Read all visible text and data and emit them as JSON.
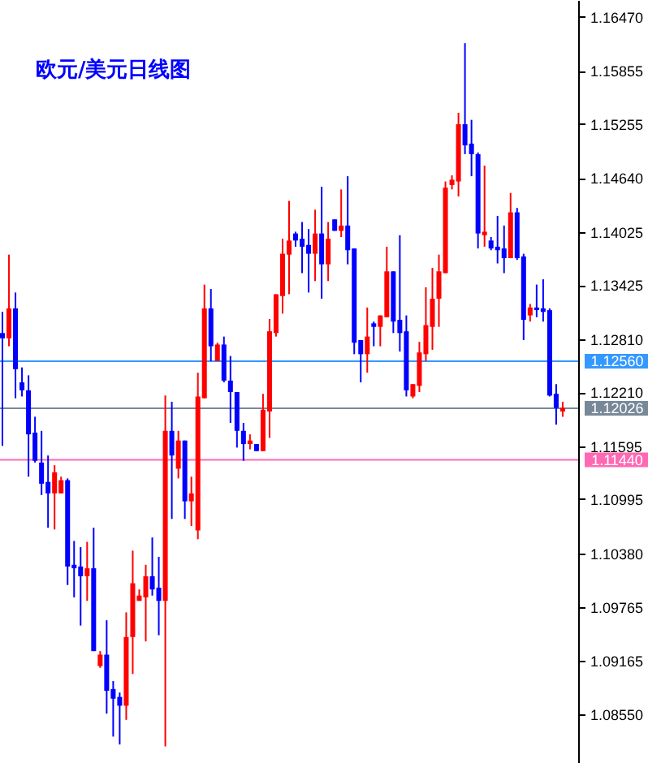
{
  "chart_data": {
    "type": "candlestick",
    "title": "欧元/美元日线图",
    "categories": [
      null,
      null,
      null,
      null,
      null,
      null,
      null,
      null,
      null,
      null,
      null,
      null,
      null,
      null,
      null,
      null,
      null,
      null,
      null,
      null,
      null,
      null,
      null,
      null,
      null,
      null,
      null,
      null,
      null,
      null,
      null,
      null,
      null,
      null,
      null,
      null,
      null,
      null,
      null,
      null,
      null,
      null,
      null,
      null,
      null,
      null,
      null,
      null,
      null,
      null,
      null,
      null,
      null,
      null,
      null,
      null,
      null,
      null,
      null,
      null,
      null,
      null,
      null,
      null,
      null,
      null,
      null,
      null,
      null,
      null,
      null,
      null,
      null,
      null,
      null,
      null,
      null,
      null,
      null,
      null,
      null,
      null,
      null,
      null,
      null,
      null,
      null
    ],
    "ohlc": [
      [
        1.1288,
        1.1312,
        1.116,
        1.1282
      ],
      [
        1.1282,
        1.1377,
        1.1273,
        1.1316
      ],
      [
        1.1316,
        1.1334,
        1.1214,
        1.1247
      ],
      [
        1.1232,
        1.1249,
        1.1216,
        1.1223
      ],
      [
        1.1223,
        1.124,
        1.1125,
        1.1173
      ],
      [
        1.1175,
        1.1193,
        1.1141,
        1.1143
      ],
      [
        1.1141,
        1.1177,
        1.1104,
        1.1117
      ],
      [
        1.1119,
        1.1149,
        1.1067,
        1.1106
      ],
      [
        1.1106,
        1.1138,
        1.1065,
        1.113
      ],
      [
        1.1106,
        1.1125,
        1.1106,
        1.1121
      ],
      [
        1.1121,
        1.1123,
        1.1002,
        1.1023
      ],
      [
        1.1025,
        1.1052,
        1.0988,
        1.1021
      ],
      [
        1.1023,
        1.1045,
        1.0956,
        1.1012
      ],
      [
        1.1012,
        1.1051,
        1.0984,
        1.1021
      ],
      [
        1.1021,
        1.1067,
        1.0927,
        1.0927
      ],
      [
        1.091,
        1.0927,
        1.0908,
        1.0923
      ],
      [
        1.0923,
        1.0962,
        1.0856,
        1.0882
      ],
      [
        1.0884,
        1.0893,
        1.083,
        1.0873
      ],
      [
        1.0875,
        1.088,
        1.0821,
        1.0865
      ],
      [
        1.0865,
        1.0971,
        1.0849,
        1.0943
      ],
      [
        1.0943,
        1.1041,
        1.0901,
        1.1004
      ],
      [
        1.0984,
        1.0997,
        1.0984,
        1.099
      ],
      [
        1.0988,
        1.1025,
        1.0938,
        1.1012
      ],
      [
        1.1012,
        1.1056,
        1.099,
        1.0997
      ],
      [
        1.0999,
        1.1034,
        1.0945,
        1.0984
      ],
      [
        1.0984,
        1.1217,
        1.0819,
        1.1177
      ],
      [
        1.1177,
        1.121,
        1.1077,
        1.1149
      ],
      [
        1.1134,
        1.1177,
        1.1123,
        1.1166
      ],
      [
        1.1166,
        1.1166,
        1.1077,
        1.1097
      ],
      [
        1.1097,
        1.1125,
        1.1069,
        1.1106
      ],
      [
        1.1064,
        1.1243,
        1.1054,
        1.1216
      ],
      [
        1.1214,
        1.1343,
        1.1214,
        1.1316
      ],
      [
        1.1316,
        1.1338,
        1.1256,
        1.1273
      ],
      [
        1.1256,
        1.1277,
        1.1256,
        1.1275
      ],
      [
        1.1275,
        1.1284,
        1.1232,
        1.1234
      ],
      [
        1.1234,
        1.1262,
        1.1186,
        1.1221
      ],
      [
        1.1221,
        1.1221,
        1.1158,
        1.1177
      ],
      [
        1.1177,
        1.1186,
        1.1143,
        1.1162
      ],
      [
        1.1162,
        1.1173,
        1.1156,
        1.1166
      ],
      [
        1.1162,
        1.1162,
        1.1154,
        1.1154
      ],
      [
        1.1154,
        1.1219,
        1.1154,
        1.1201
      ],
      [
        1.1199,
        1.1304,
        1.1169,
        1.129
      ],
      [
        1.1288,
        1.1332,
        1.1284,
        1.1332
      ],
      [
        1.133,
        1.1395,
        1.131,
        1.1378
      ],
      [
        1.1377,
        1.1438,
        1.1332,
        1.1393
      ],
      [
        1.1401,
        1.1403,
        1.1386,
        1.1393
      ],
      [
        1.1395,
        1.1414,
        1.1356,
        1.1386
      ],
      [
        1.1388,
        1.1406,
        1.1334,
        1.1378
      ],
      [
        1.1378,
        1.1428,
        1.1347,
        1.1401
      ],
      [
        1.1401,
        1.1454,
        1.1327,
        1.1366
      ],
      [
        1.1366,
        1.1414,
        1.1347,
        1.1395
      ],
      [
        1.1417,
        1.1417,
        1.1404,
        1.1404
      ],
      [
        1.1404,
        1.1451,
        1.1397,
        1.141
      ],
      [
        1.141,
        1.1466,
        1.1366,
        1.1382
      ],
      [
        1.1384,
        1.1384,
        1.1264,
        1.1277
      ],
      [
        1.128,
        1.128,
        1.1232,
        1.1264
      ],
      [
        1.1264,
        1.1317,
        1.1243,
        1.1284
      ],
      [
        1.1299,
        1.1301,
        1.1273,
        1.1295
      ],
      [
        1.1295,
        1.1308,
        1.1273,
        1.1308
      ],
      [
        1.1306,
        1.1386,
        1.1306,
        1.1358
      ],
      [
        1.1358,
        1.1358,
        1.1288,
        1.1301
      ],
      [
        1.1303,
        1.1399,
        1.1267,
        1.1288
      ],
      [
        1.129,
        1.1308,
        1.1216,
        1.1223
      ],
      [
        1.1216,
        1.123,
        1.1214,
        1.123
      ],
      [
        1.1228,
        1.1278,
        1.1221,
        1.1266
      ],
      [
        1.1264,
        1.134,
        1.1256,
        1.1297
      ],
      [
        1.1295,
        1.1362,
        1.1269,
        1.1327
      ],
      [
        1.1327,
        1.1377,
        1.1295,
        1.1358
      ],
      [
        1.1356,
        1.146,
        1.1356,
        1.1453
      ],
      [
        1.1456,
        1.1467,
        1.1451,
        1.1462
      ],
      [
        1.146,
        1.1538,
        1.1443,
        1.1525
      ],
      [
        1.1525,
        1.1617,
        1.1491,
        1.1501
      ],
      [
        1.1503,
        1.153,
        1.1466,
        1.1491
      ],
      [
        1.1491,
        1.1493,
        1.1384,
        1.1401
      ],
      [
        1.1399,
        1.1478,
        1.1386,
        1.1403
      ],
      [
        1.1393,
        1.1397,
        1.1382,
        1.1384
      ],
      [
        1.1386,
        1.1421,
        1.1367,
        1.1382
      ],
      [
        1.1384,
        1.141,
        1.1356,
        1.1373
      ],
      [
        1.1373,
        1.1447,
        1.1373,
        1.1425
      ],
      [
        1.1425,
        1.143,
        1.1371,
        1.1373
      ],
      [
        1.1375,
        1.1378,
        1.128,
        1.1303
      ],
      [
        1.1308,
        1.1321,
        1.1301,
        1.1317
      ],
      [
        1.1317,
        1.1343,
        1.1306,
        1.1314
      ],
      [
        1.1316,
        1.1349,
        1.1301,
        1.1312
      ],
      [
        1.1314,
        1.1316,
        1.1216,
        1.1217
      ],
      [
        1.1219,
        1.123,
        1.1184,
        1.1203
      ],
      [
        1.1199,
        1.121,
        1.1193,
        1.1203
      ]
    ],
    "colors": [
      "#0000ff",
      "#ff0000",
      "#0000ff",
      "#0000ff",
      "#0000ff",
      "#0000ff",
      "#0000ff",
      "#0000ff",
      "#ff0000",
      "#ff0000",
      "#0000ff",
      "#0000ff",
      "#0000ff",
      "#ff0000",
      "#0000ff",
      "#ff0000",
      "#0000ff",
      "#0000ff",
      "#0000ff",
      "#ff0000",
      "#ff0000",
      "#ff0000",
      "#ff0000",
      "#0000ff",
      "#0000ff",
      "#ff0000",
      "#0000ff",
      "#ff0000",
      "#0000ff",
      "#ff0000",
      "#ff0000",
      "#ff0000",
      "#0000ff",
      "#ff0000",
      "#0000ff",
      "#0000ff",
      "#0000ff",
      "#0000ff",
      "#ff0000",
      "#0000ff",
      "#ff0000",
      "#ff0000",
      "#ff0000",
      "#ff0000",
      "#ff0000",
      "#0000ff",
      "#0000ff",
      "#0000ff",
      "#ff0000",
      "#0000ff",
      "#ff0000",
      "#0000ff",
      "#ff0000",
      "#0000ff",
      "#0000ff",
      "#0000ff",
      "#ff0000",
      "#0000ff",
      "#ff0000",
      "#ff0000",
      "#0000ff",
      "#0000ff",
      "#0000ff",
      "#ff0000",
      "#ff0000",
      "#ff0000",
      "#ff0000",
      "#ff0000",
      "#ff0000",
      "#ff0000",
      "#ff0000",
      "#0000ff",
      "#0000ff",
      "#0000ff",
      "#ff0000",
      "#0000ff",
      "#0000ff",
      "#0000ff",
      "#ff0000",
      "#0000ff",
      "#0000ff",
      "#ff0000",
      "#0000ff",
      "#0000ff",
      "#0000ff",
      "#0000ff",
      "#ff0000"
    ],
    "ylim": [
      1.08,
      1.1666
    ],
    "yticks": [
      {
        "value": 1.1647,
        "label": "1.16470"
      },
      {
        "value": 1.15855,
        "label": "1.15855"
      },
      {
        "value": 1.15255,
        "label": "1.15255"
      },
      {
        "value": 1.1464,
        "label": "1.14640"
      },
      {
        "value": 1.14025,
        "label": "1.14025"
      },
      {
        "value": 1.13425,
        "label": "1.13425"
      },
      {
        "value": 1.1281,
        "label": "1.12810"
      },
      {
        "value": 1.1221,
        "label": "1.12210"
      },
      {
        "value": 1.11595,
        "label": "1.11595"
      },
      {
        "value": 1.10995,
        "label": "1.10995"
      },
      {
        "value": 1.1038,
        "label": "1.10380"
      },
      {
        "value": 1.09765,
        "label": "1.09765"
      },
      {
        "value": 1.09165,
        "label": "1.09165"
      },
      {
        "value": 1.0855,
        "label": "1.08550"
      }
    ],
    "ref_lines": [
      {
        "axis": "y",
        "value": 1.1256,
        "label": "1.12560",
        "color": "#3399ff"
      },
      {
        "axis": "y",
        "value": 1.12026,
        "label": "1.12026",
        "color": "#778899"
      },
      {
        "axis": "y",
        "value": 1.1144,
        "label": "1.11440",
        "color": "#ff69b4"
      }
    ]
  }
}
